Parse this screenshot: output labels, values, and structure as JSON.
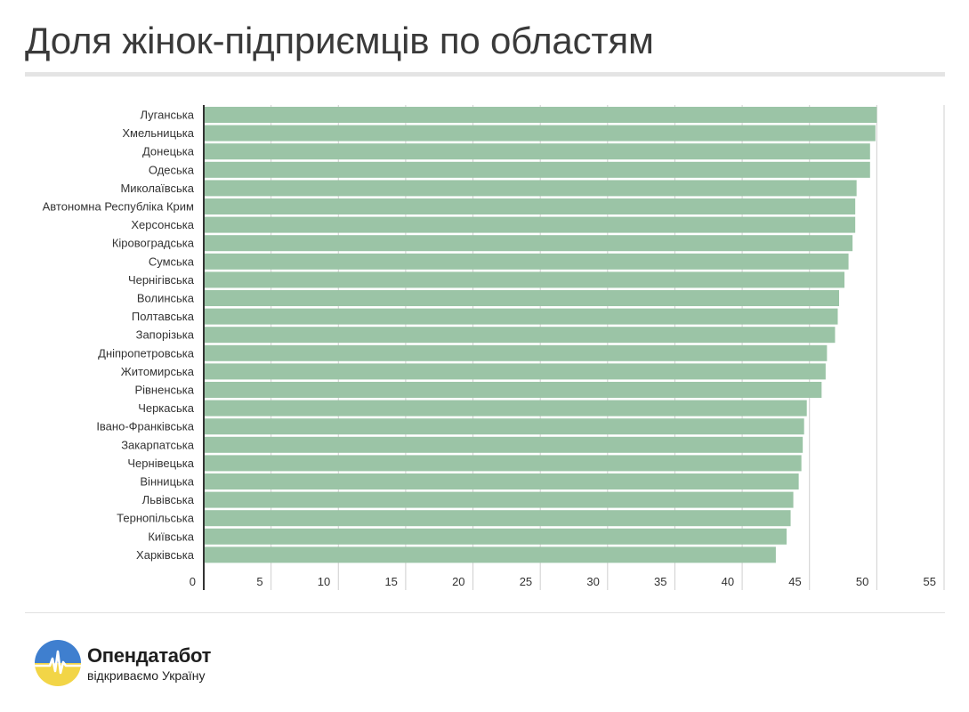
{
  "title": "Доля жінок-підприємців по областям",
  "brand": {
    "name": "Опендатабот",
    "tagline": "відкриваємо Україну",
    "logo_icon": "sun-flag-pulse-icon"
  },
  "colors": {
    "bar": "#9bc4a6",
    "grid": "#cfcfcf",
    "axis": "#333333",
    "logo_blue": "#3f7fcf",
    "logo_yellow": "#f2d547"
  },
  "chart_data": {
    "type": "bar",
    "orientation": "horizontal",
    "title": "Доля жінок-підприємців по областям",
    "xlabel": "",
    "ylabel": "",
    "xlim": [
      0,
      55
    ],
    "x_ticks": [
      0,
      5,
      10,
      15,
      20,
      25,
      30,
      35,
      40,
      45,
      50,
      55
    ],
    "grid": true,
    "legend": "none",
    "categories": [
      "Луганська",
      "Хмельницька",
      "Донецька",
      "Одеська",
      "Миколаївська",
      "Автономна Республіка Крим",
      "Херсонська",
      "Кіровоградська",
      "Сумська",
      "Чернігівська",
      "Волинська",
      "Полтавська",
      "Запорізька",
      "Дніпропетровська",
      "Житомирська",
      "Рівненська",
      "Черкаська",
      "Івано-Франківська",
      "Закарпатська",
      "Чернівецька",
      "Вінницька",
      "Львівська",
      "Тернопільська",
      "Київська",
      "Харківська"
    ],
    "values": [
      50.0,
      49.9,
      49.5,
      49.5,
      48.5,
      48.4,
      48.4,
      48.2,
      47.9,
      47.6,
      47.2,
      47.1,
      46.9,
      46.3,
      46.2,
      45.9,
      44.8,
      44.6,
      44.5,
      44.4,
      44.2,
      43.8,
      43.6,
      43.3,
      42.5
    ]
  }
}
